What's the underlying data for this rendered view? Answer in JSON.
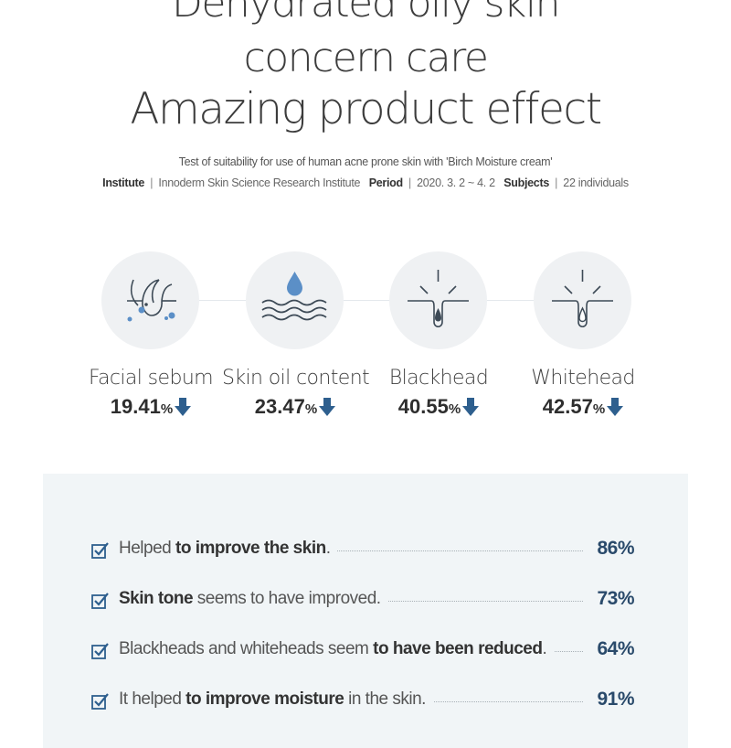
{
  "headline": {
    "line1": "Dehydrated oily skin",
    "line2": "concern care",
    "line3": "Amazing product effect"
  },
  "test_info": {
    "subtitle": "Test of suitability for use of human acne prone skin with 'Birch Moisture cream'",
    "institute_label": "Institute",
    "institute_value": "Innoderm Skin Science Research Institute",
    "period_label": "Period",
    "period_value": "2020. 3. 2 ~ 4. 2",
    "subjects_label": "Subjects",
    "subjects_value": "22 individuals",
    "separator": "|"
  },
  "metrics": [
    {
      "label": "Facial sebum",
      "value": "19.41",
      "unit": "%",
      "icon": "hair-follicle-sebum-icon"
    },
    {
      "label": "Skin oil content",
      "value": "23.47",
      "unit": "%",
      "icon": "water-drop-waves-icon"
    },
    {
      "label": "Blackhead",
      "value": "40.55",
      "unit": "%",
      "icon": "blackhead-pore-icon"
    },
    {
      "label": "Whitehead",
      "value": "42.57",
      "unit": "%",
      "icon": "whitehead-pore-icon"
    }
  ],
  "survey": [
    {
      "pre": "Helped ",
      "bold": "to improve the skin",
      "post": ".",
      "percent": "86%"
    },
    {
      "pre": "",
      "bold": "Skin tone",
      "post": " seems to have improved.",
      "percent": "73%"
    },
    {
      "pre": "Blackheads and whiteheads seem ",
      "bold": "to have been reduced",
      "post": ".",
      "percent": "64%"
    },
    {
      "pre": "It helped ",
      "bold": "to improve moisture",
      "post": " in the skin.",
      "percent": "91%"
    }
  ],
  "colors": {
    "accent_blue": "#2e5f8e",
    "drop_blue": "#5b8fc7",
    "panel_bg": "#f1f5f7",
    "circle_bg": "#eff1f3"
  }
}
